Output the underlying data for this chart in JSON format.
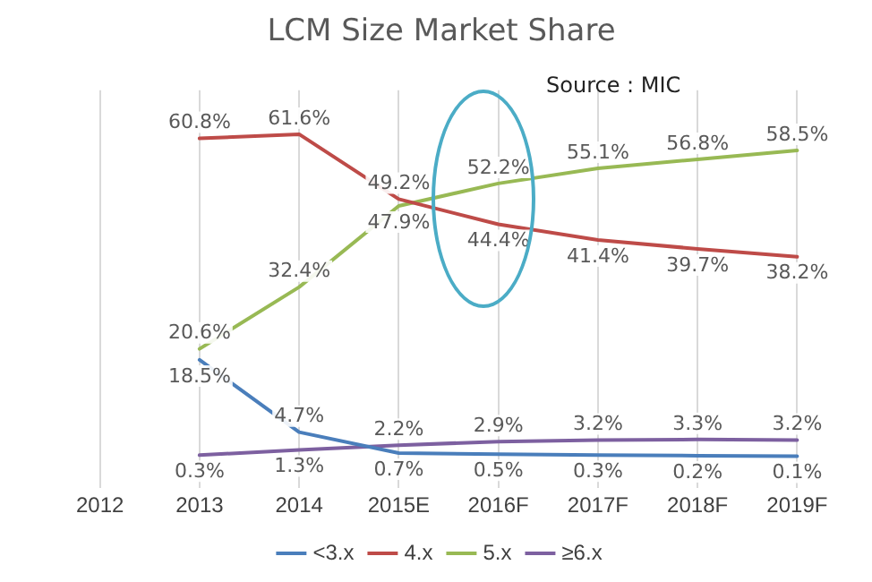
{
  "chart_data": {
    "type": "line",
    "title": "LCM Size Market Share",
    "categories": [
      "2012",
      "2013",
      "2014",
      "2015E",
      "2016F",
      "2017F",
      "2018F",
      "2019F"
    ],
    "series": [
      {
        "name": "<3.x",
        "color": "#4a7ebb",
        "values": [
          null,
          18.5,
          4.7,
          0.7,
          0.5,
          0.3,
          0.2,
          0.1
        ],
        "value_labels": [
          null,
          "18.5%",
          "4.7%",
          "0.7%",
          "0.5%",
          "0.3%",
          "0.2%",
          "0.1%"
        ]
      },
      {
        "name": "4.x",
        "color": "#be4b48",
        "values": [
          null,
          60.8,
          61.6,
          49.2,
          44.4,
          41.4,
          39.7,
          38.2
        ],
        "value_labels": [
          null,
          "60.8%",
          "61.6%",
          "49.2%",
          "44.4%",
          "41.4%",
          "39.7%",
          "38.2%"
        ]
      },
      {
        "name": "5.x",
        "color": "#98b954",
        "values": [
          null,
          20.6,
          32.4,
          47.9,
          52.2,
          55.1,
          56.8,
          58.5
        ],
        "value_labels": [
          null,
          "20.6%",
          "32.4%",
          "47.9%",
          "52.2%",
          "55.1%",
          "56.8%",
          "58.5%"
        ]
      },
      {
        "name": "≥6.x",
        "color": "#7d60a0",
        "values": [
          null,
          0.3,
          1.3,
          2.2,
          2.9,
          3.2,
          3.3,
          3.2
        ],
        "value_labels": [
          null,
          "0.3%",
          "1.3%",
          "2.2%",
          "2.9%",
          "3.2%",
          "3.3%",
          "3.2%"
        ]
      }
    ],
    "ylim": [
      -6,
      70
    ],
    "tick_labels": "x",
    "grid": "x",
    "legend": "bottom",
    "marker": "none",
    "line_style": "solid",
    "annotations": [
      "Source : MIC"
    ]
  }
}
